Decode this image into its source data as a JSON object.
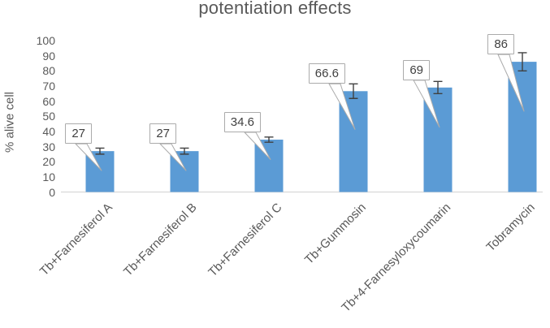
{
  "chart_data": {
    "type": "bar",
    "title": "potentiation effects",
    "ylabel": "% alive cell",
    "xlabel": "",
    "categories": [
      "Tb+Farnesiferol A",
      "Tb+Farnesiferol B",
      "Tb+Farnesiferol C",
      "Tb+Gummosin",
      "Tb+4-Farnesyloxycoumarin",
      "Tobramycin"
    ],
    "values": [
      27,
      27,
      34.6,
      66.6,
      69,
      86
    ],
    "data_labels": [
      "27",
      "27",
      "34.6",
      "66.6",
      "69",
      "86"
    ],
    "errors": [
      2,
      2,
      1.7,
      4.8,
      4,
      6
    ],
    "ylim": [
      0,
      100
    ],
    "ytick_step": 10,
    "grid": false,
    "legend": "none",
    "colors": {
      "bar": "#5B9BD5",
      "axis_line": "#D9D9D9",
      "error_bar": "#404040",
      "axis_text": "#595959",
      "callout_border": "#ABABAB",
      "callout_text": "#404040"
    }
  }
}
